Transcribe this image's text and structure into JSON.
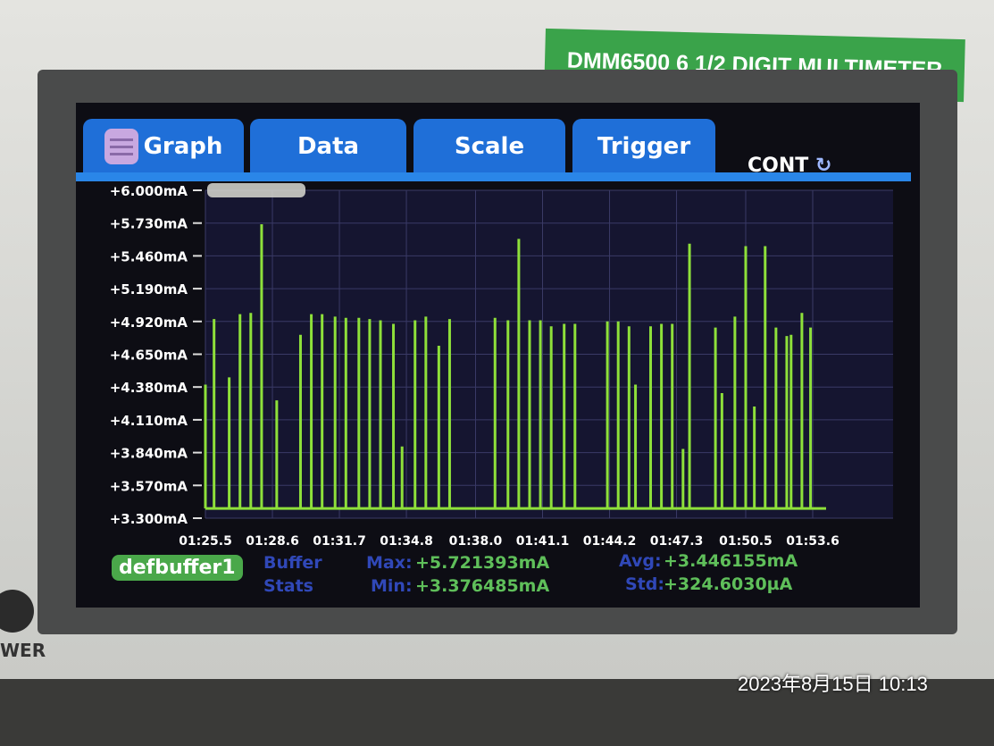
{
  "device": {
    "brand_label": "DMM6500 6 1/2 DIGIT MULTIMETER",
    "power_label": "WER"
  },
  "tabs": [
    {
      "label": "Graph",
      "icon": "menu-icon",
      "active": true
    },
    {
      "label": "Data"
    },
    {
      "label": "Scale"
    },
    {
      "label": "Trigger"
    }
  ],
  "trigger_mode": {
    "label": "CONT",
    "icon": "refresh-icon"
  },
  "stats": {
    "buffer_name": "defbuffer1",
    "title_line1": "Buffer",
    "title_line2": "Stats",
    "max_label": "Max:",
    "max_value": "+5.721393mA",
    "min_label": "Min:",
    "min_value": "+3.376485mA",
    "avg_label": "Avg:",
    "avg_value": "+3.446155mA",
    "std_label": "Std:",
    "std_value": "+324.6030µA"
  },
  "timestamp": "2023年8月15日 10:13",
  "colors": {
    "trace": "#8ee03a",
    "tab": "#1f6fd8",
    "buffer_badge": "#4aa84a"
  },
  "chart_data": {
    "type": "line",
    "ylim": [
      3.3,
      6.0
    ],
    "y_unit": "mA",
    "y_ticks": [
      "+3.300mA",
      "+3.570mA",
      "+3.840mA",
      "+4.110mA",
      "+4.380mA",
      "+4.650mA",
      "+4.920mA",
      "+5.190mA",
      "+5.460mA",
      "+5.730mA",
      "+6.000mA"
    ],
    "x_ticks": [
      "01:25.5",
      "01:28.6",
      "01:31.7",
      "01:34.8",
      "01:38.0",
      "01:41.1",
      "01:44.2",
      "01:47.3",
      "01:50.5",
      "01:53.6"
    ],
    "xlim": [
      "01:25.5",
      "01:55.0"
    ],
    "grid": true,
    "baseline": 3.38,
    "spikes": {
      "x": [
        "01:25.5",
        "01:25.9",
        "01:26.6",
        "01:27.1",
        "01:27.6",
        "01:28.1",
        "01:28.8",
        "01:29.9",
        "01:30.4",
        "01:30.9",
        "01:31.5",
        "01:32.0",
        "01:32.6",
        "01:33.1",
        "01:33.6",
        "01:34.2",
        "01:34.6",
        "01:35.2",
        "01:35.7",
        "01:36.3",
        "01:36.8",
        "01:38.9",
        "01:39.5",
        "01:40.0",
        "01:40.5",
        "01:41.0",
        "01:41.5",
        "01:42.1",
        "01:42.6",
        "01:44.1",
        "01:44.6",
        "01:45.1",
        "01:45.4",
        "01:46.1",
        "01:46.6",
        "01:47.1",
        "01:47.6",
        "01:47.9",
        "01:49.1",
        "01:49.4",
        "01:50.0",
        "01:50.5",
        "01:50.9",
        "01:51.4",
        "01:51.9",
        "01:52.4",
        "01:52.6",
        "01:53.1",
        "01:53.5"
      ],
      "y": [
        4.4,
        4.94,
        4.46,
        4.98,
        4.99,
        5.72,
        4.27,
        4.81,
        4.98,
        4.98,
        4.96,
        4.95,
        4.95,
        4.94,
        4.93,
        4.9,
        3.89,
        4.93,
        4.96,
        4.72,
        4.94,
        4.95,
        4.93,
        5.6,
        4.93,
        4.93,
        4.88,
        4.9,
        4.9,
        4.92,
        4.92,
        4.88,
        4.4,
        4.88,
        4.9,
        4.9,
        3.87,
        5.56,
        4.87,
        4.33,
        4.96,
        5.54,
        4.22,
        5.54,
        4.87,
        4.8,
        4.81,
        4.99,
        4.87
      ]
    }
  }
}
